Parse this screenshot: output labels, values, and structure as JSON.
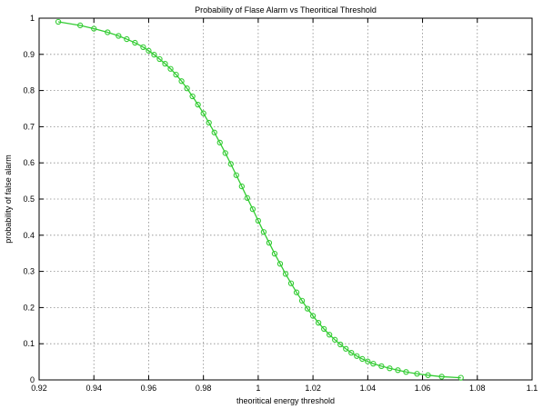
{
  "chart_data": {
    "type": "line",
    "title": "Probability of Flase Alarm vs Theoritical Threshold",
    "xlabel": "theoritical energy threshold",
    "ylabel": "probability of false alarm",
    "xlim": [
      0.92,
      1.1
    ],
    "ylim": [
      0,
      1
    ],
    "xticks": [
      "0.92",
      "0.94",
      "0.96",
      "0.98",
      "1",
      "1.02",
      "1.04",
      "1.06",
      "1.08",
      "1.1"
    ],
    "yticks": [
      "0",
      "0.1",
      "0.2",
      "0.3",
      "0.4",
      "0.5",
      "0.6",
      "0.7",
      "0.8",
      "0.9",
      "1"
    ],
    "grid": true,
    "marker": "circle",
    "color": "#33cc33",
    "series": [
      {
        "x": [
          0.927,
          0.935,
          0.94,
          0.945,
          0.949,
          0.952,
          0.955,
          0.958,
          0.96,
          0.962,
          0.964,
          0.966,
          0.968,
          0.97,
          0.972,
          0.974,
          0.976,
          0.978,
          0.98,
          0.982,
          0.984,
          0.986,
          0.988,
          0.99,
          0.992,
          0.994,
          0.996,
          0.998,
          1.0,
          1.002,
          1.004,
          1.006,
          1.008,
          1.01,
          1.012,
          1.014,
          1.016,
          1.018,
          1.02,
          1.022,
          1.024,
          1.026,
          1.028,
          1.03,
          1.032,
          1.034,
          1.036,
          1.038,
          1.04,
          1.042,
          1.045,
          1.048,
          1.051,
          1.054,
          1.058,
          1.062,
          1.067,
          1.074
        ],
        "y": [
          0.99,
          0.98,
          0.971,
          0.961,
          0.951,
          0.942,
          0.932,
          0.92,
          0.91,
          0.899,
          0.887,
          0.874,
          0.86,
          0.844,
          0.826,
          0.806,
          0.784,
          0.761,
          0.737,
          0.711,
          0.684,
          0.656,
          0.627,
          0.597,
          0.566,
          0.535,
          0.503,
          0.472,
          0.44,
          0.409,
          0.379,
          0.349,
          0.321,
          0.293,
          0.267,
          0.242,
          0.219,
          0.197,
          0.177,
          0.158,
          0.141,
          0.125,
          0.111,
          0.098,
          0.086,
          0.075,
          0.066,
          0.058,
          0.051,
          0.045,
          0.038,
          0.032,
          0.027,
          0.022,
          0.017,
          0.013,
          0.009,
          0.006
        ]
      }
    ]
  }
}
